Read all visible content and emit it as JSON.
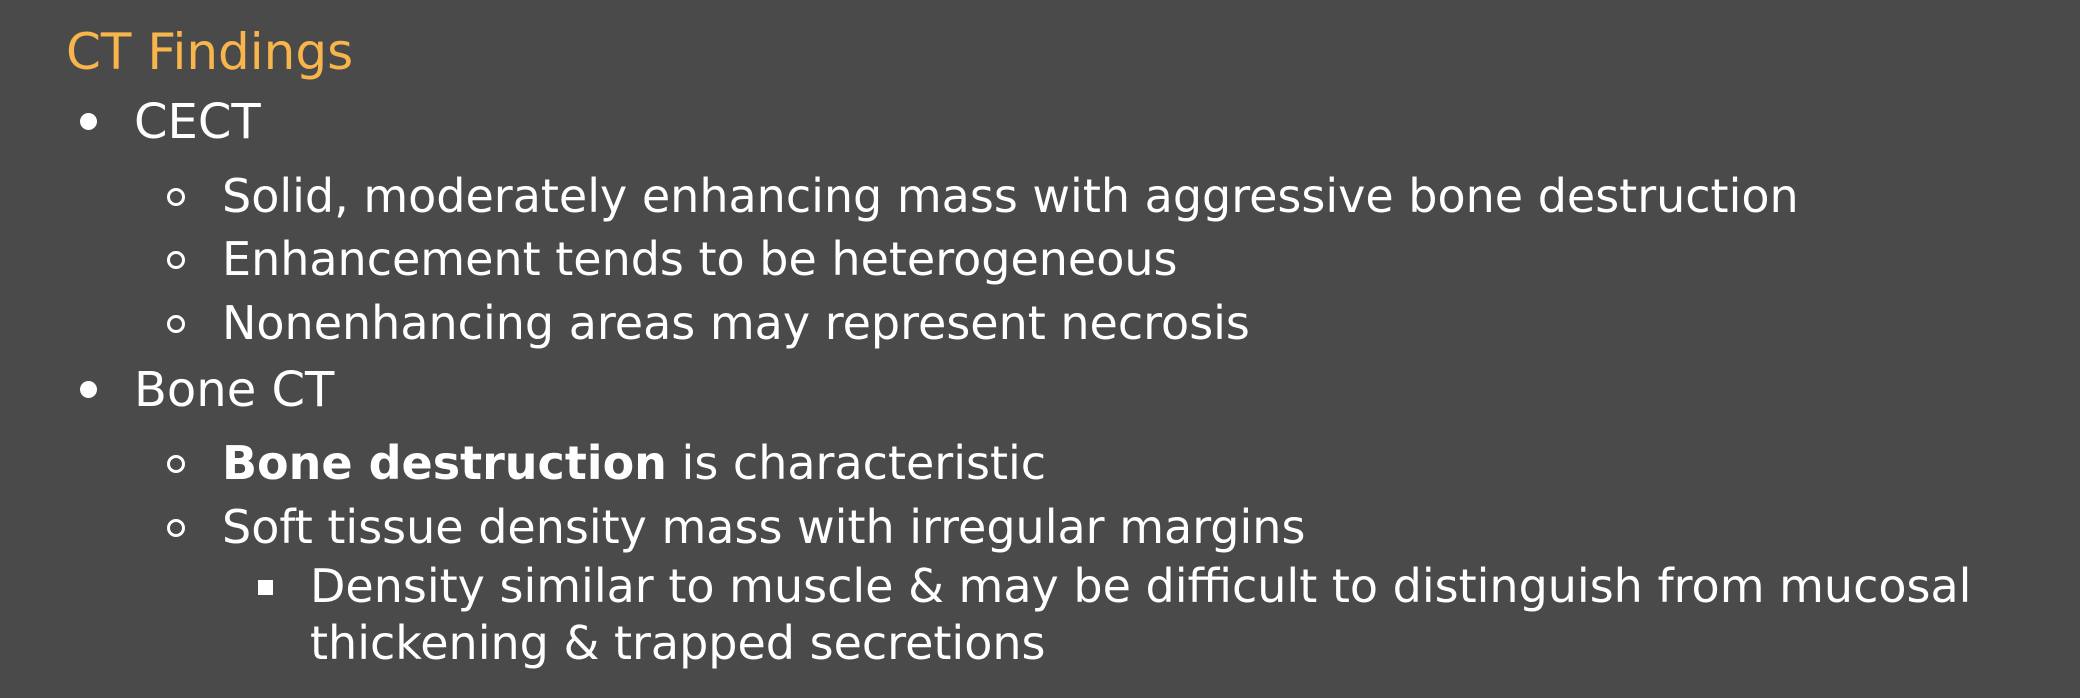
{
  "slide": {
    "title": "CT Findings",
    "colors": {
      "background": "#4a4a4a",
      "title": "#f7b54b",
      "text": "#ffffff"
    },
    "sections": [
      {
        "heading": "CECT",
        "items": [
          "Solid, moderately enhancing mass with aggressive bone destruction",
          "Enhancement tends to be heterogeneous",
          "Nonenhancing areas may represent necrosis"
        ]
      },
      {
        "heading": "Bone CT",
        "items": [
          {
            "bold": "Bone destruction",
            "rest": " is characteristic"
          },
          "Soft tissue density mass with irregular margins"
        ],
        "subitem": {
          "line1": "Density similar to muscle & may be difficult to distinguish from mucosal",
          "line2": "thickening & trapped secretions"
        }
      }
    ]
  }
}
